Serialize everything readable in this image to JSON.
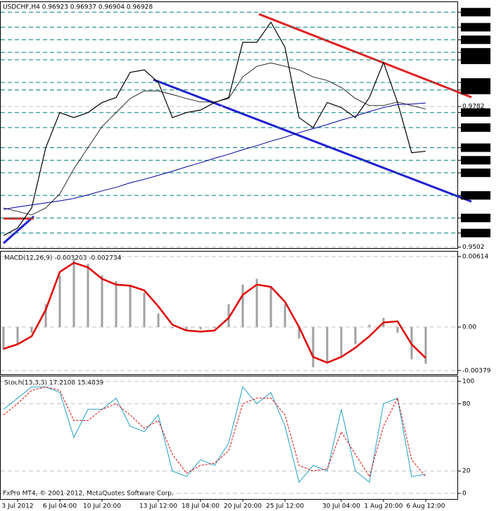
{
  "header": "USDCHF,H4  0.96923 0.96937 0.96904 0.96928",
  "footer": "FxPro MT4, © 2001-2012, MetaQuotes Software Corp.",
  "chart_data": [
    {
      "type": "line",
      "ylim": [
        0.95,
        0.999
      ],
      "yticks": [
        {
          "value": 0.997,
          "label": "0.9970",
          "boxed": true
        },
        {
          "value": 0.994,
          "label": "0.9940",
          "boxed": true
        },
        {
          "value": 0.9915,
          "label": "0.9915",
          "boxed": true
        },
        {
          "value": 0.989,
          "label": "0.9890",
          "boxed": true
        },
        {
          "value": 0.9875,
          "label": "0.9875",
          "boxed": true
        },
        {
          "value": 0.983,
          "label": "0.9830",
          "boxed": true
        },
        {
          "value": 0.9815,
          "label": "0.9815",
          "boxed": true
        },
        {
          "value": 0.9782,
          "label": "0.9782",
          "boxed": false
        },
        {
          "value": 0.977,
          "label": "0.9770",
          "boxed": true
        },
        {
          "value": 0.974,
          "label": "0.9740",
          "boxed": true
        },
        {
          "value": 0.97,
          "label": "0.9700",
          "boxed": true
        },
        {
          "value": 0.9675,
          "label": "0.9675",
          "boxed": true
        },
        {
          "value": 0.965,
          "label": "0.9650",
          "boxed": true
        },
        {
          "value": 0.9605,
          "label": "0.9605",
          "boxed": true
        },
        {
          "value": 0.956,
          "label": "0.9560",
          "boxed": true
        },
        {
          "value": 0.953,
          "label": "0.9530",
          "boxed": true
        },
        {
          "value": 0.9502,
          "label": "0.9502",
          "boxed": false
        }
      ],
      "series": [
        {
          "color": "#000000",
          "width": 1.2,
          "values": [
            0.9525,
            0.954,
            0.958,
            0.97,
            0.977,
            0.976,
            0.977,
            0.979,
            0.98,
            0.985,
            0.9855,
            0.983,
            0.976,
            0.977,
            0.9775,
            0.979,
            0.98,
            0.991,
            0.991,
            0.995,
            0.99,
            0.976,
            0.974,
            0.979,
            0.978,
            0.976,
            0.98,
            0.987,
            0.979,
            0.969,
            0.9693
          ]
        },
        {
          "color": "#000000",
          "width": 0.8,
          "values": [
            0.958,
            0.9573,
            0.9566,
            0.958,
            0.9608,
            0.9658,
            0.97,
            0.9742,
            0.977,
            0.9798,
            0.9813,
            0.9813,
            0.9806,
            0.9798,
            0.9791,
            0.9791,
            0.9798,
            0.9841,
            0.9862,
            0.9869,
            0.9862,
            0.9855,
            0.9841,
            0.9834,
            0.982,
            0.9798,
            0.9784,
            0.9784,
            0.9791,
            0.9784,
            0.9777
          ]
        },
        {
          "color": "#0000a0",
          "width": 1,
          "values": [
            0.9577,
            0.9582,
            0.9586,
            0.959,
            0.9594,
            0.9599,
            0.9606,
            0.9614,
            0.9621,
            0.963,
            0.9637,
            0.9645,
            0.9653,
            0.9662,
            0.967,
            0.9679,
            0.9687,
            0.9696,
            0.9704,
            0.9713,
            0.9721,
            0.973,
            0.9738,
            0.9746,
            0.9755,
            0.9763,
            0.9772,
            0.978,
            0.9786,
            0.9787,
            0.9789
          ]
        }
      ]
    },
    {
      "type": "combo",
      "title": "MACD(12,26,9) -0.003203 -0.002734",
      "ylim": [
        -0.00411,
        0.00657
      ],
      "yticks": [
        {
          "value": 0.00614,
          "label": "0.00614"
        },
        {
          "value": 0,
          "label": "0.00"
        },
        {
          "value": -0.00379,
          "label": "-0.00379"
        }
      ],
      "series": [
        {
          "type": "bar",
          "color": "#a0a0a0",
          "values": [
            -0.002,
            -0.0015,
            -0.0005,
            0.002,
            0.0045,
            0.006,
            0.0055,
            0.0045,
            0.004,
            0.0037,
            0.003,
            0.0012,
            -0.0001,
            -0.0003,
            -0.0002,
            -0.0001,
            0.002,
            0.0037,
            0.0042,
            0.0035,
            0.002,
            -0.001,
            -0.0035,
            -0.003,
            -0.0025,
            -0.0015,
            0.0002,
            0.0008,
            -0.0005,
            -0.0028,
            -0.0032
          ]
        },
        {
          "type": "line",
          "color": "#e00000",
          "width": 2.5,
          "values": [
            -0.0019,
            -0.0015,
            -0.0008,
            0.0015,
            0.0048,
            0.0056,
            0.0052,
            0.0042,
            0.0037,
            0.0036,
            0.0032,
            0.0018,
            0.0002,
            -0.0003,
            -0.0004,
            -0.0003,
            0.0008,
            0.0028,
            0.0037,
            0.0035,
            0.0022,
            0,
            -0.0026,
            -0.0031,
            -0.0026,
            -0.0018,
            -0.0008,
            0.0004,
            0.0005,
            -0.0015,
            -0.0027
          ]
        }
      ]
    },
    {
      "type": "line",
      "title": "Stoch(13,3,3) 17.2108 15.4839",
      "ylim": [
        -5,
        104.4
      ],
      "yticks": [
        100,
        80,
        20,
        0
      ],
      "categories": [
        null,
        "3 Jul 2012",
        null,
        null,
        "6 Jul 04:00",
        null,
        null,
        "10 Jul 20:00",
        null,
        null,
        null,
        "13 Jul 12:00",
        null,
        null,
        "18 Jul 04:00",
        null,
        null,
        "20 Jul 20:00",
        null,
        null,
        "25 Jul 12:00",
        null,
        null,
        null,
        "30 Jul 04:00",
        null,
        null,
        "1 Aug 20:00",
        null,
        null,
        "6 Aug 12:00"
      ],
      "series": [
        {
          "color": "#20a0c0",
          "width": 1,
          "values": [
            75,
            85,
            95,
            95,
            90,
            50,
            75,
            75,
            85,
            60,
            55,
            70,
            20,
            15,
            30,
            25,
            45,
            95,
            80,
            90,
            60,
            10,
            25,
            20,
            75,
            20,
            10,
            80,
            85,
            15,
            17
          ]
        },
        {
          "color": "#e00000",
          "width": 1,
          "dash": true,
          "values": [
            70,
            80,
            92,
            95,
            92,
            65,
            65,
            75,
            80,
            70,
            58,
            65,
            35,
            18,
            25,
            27,
            38,
            80,
            85,
            85,
            70,
            25,
            20,
            22,
            55,
            35,
            15,
            60,
            85,
            30,
            15
          ]
        }
      ]
    }
  ]
}
